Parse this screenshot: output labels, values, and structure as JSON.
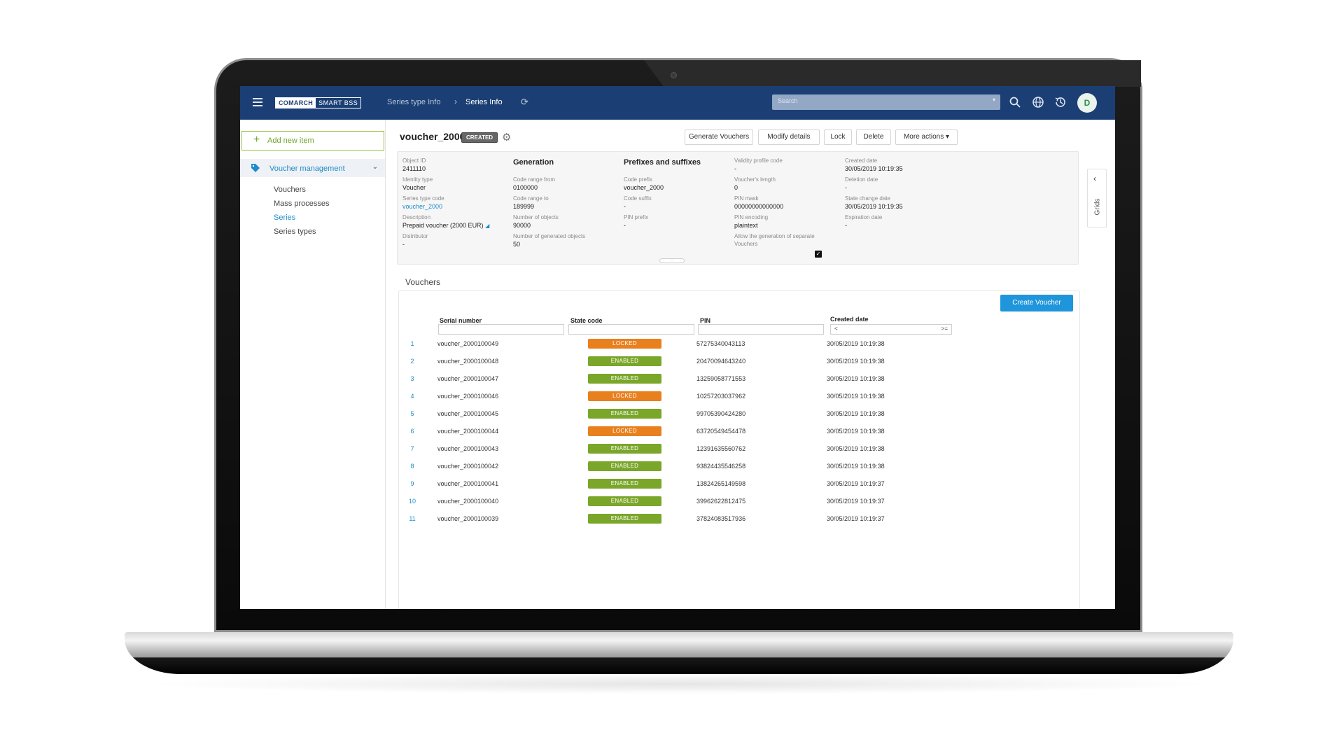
{
  "app": {
    "logo_primary": "COMARCH",
    "logo_secondary": "SMART BSS",
    "breadcrumb": [
      "Series type Info",
      "Series Info"
    ],
    "search_placeholder": "Search",
    "avatar_initial": "D",
    "accent_color": "#1b3f74"
  },
  "sidebar": {
    "add_label": "Add new item",
    "section_label": "Voucher management",
    "items": [
      {
        "label": "Vouchers",
        "active": false
      },
      {
        "label": "Mass processes",
        "active": false
      },
      {
        "label": "Series",
        "active": true
      },
      {
        "label": "Series types",
        "active": false
      }
    ]
  },
  "header": {
    "title": "voucher_2000",
    "status": "CREATED",
    "buttons": [
      "Generate Vouchers",
      "Modify details",
      "Lock",
      "Delete",
      "More actions"
    ]
  },
  "details": {
    "col1": [
      {
        "label": "Object ID",
        "value": "2411110"
      },
      {
        "label": "Identity type",
        "value": "Voucher"
      },
      {
        "label": "Series type code",
        "value": "voucher_2000"
      },
      {
        "label": "Description",
        "value": "Prepaid voucher (2000 EUR)"
      },
      {
        "label": "Distributor",
        "value": "-"
      }
    ],
    "generation": {
      "title": "Generation",
      "fields": [
        {
          "label": "Code range from",
          "value": "0100000"
        },
        {
          "label": "Code range to",
          "value": "189999"
        },
        {
          "label": "Number of objects",
          "value": "90000"
        },
        {
          "label": "Number of generated objects",
          "value": "50"
        }
      ]
    },
    "prefixes": {
      "title": "Prefixes and suffixes",
      "fields": [
        {
          "label": "Code prefix",
          "value": "voucher_2000"
        },
        {
          "label": "Code suffix",
          "value": "-"
        },
        {
          "label": "PIN prefix",
          "value": "-"
        }
      ]
    },
    "col4": [
      {
        "label": "Validity profile code",
        "value": "-"
      },
      {
        "label": "Voucher's length",
        "value": "0"
      },
      {
        "label": "PIN mask",
        "value": "00000000000000"
      },
      {
        "label": "PIN encoding",
        "value": "plaintext"
      }
    ],
    "allow_label_1": "Allow the generation of separate",
    "allow_label_2": "Vouchers",
    "allow_checked": true,
    "col5": [
      {
        "label": "Created date",
        "value": "30/05/2019 10:19:35"
      },
      {
        "label": "Deletion date",
        "value": "-"
      },
      {
        "label": "State change date",
        "value": "30/05/2019 10:19:35"
      },
      {
        "label": "Expiration date",
        "value": "-"
      }
    ]
  },
  "grids_tab_label": "Grids",
  "vouchers": {
    "title": "Vouchers",
    "create_label": "Create Voucher",
    "columns": [
      "Serial number",
      "State code",
      "PIN",
      "Created date"
    ],
    "date_filter_lt": "<",
    "date_filter_ge": ">=",
    "state_colors": {
      "LOCKED": "#e8801e",
      "ENABLED": "#7aa62a"
    },
    "rows": [
      {
        "n": "1",
        "serial": "voucher_2000100049",
        "state": "LOCKED",
        "pin": "57275340043113",
        "date": "30/05/2019 10:19:38"
      },
      {
        "n": "2",
        "serial": "voucher_2000100048",
        "state": "ENABLED",
        "pin": "20470094643240",
        "date": "30/05/2019 10:19:38"
      },
      {
        "n": "3",
        "serial": "voucher_2000100047",
        "state": "ENABLED",
        "pin": "13259058771553",
        "date": "30/05/2019 10:19:38"
      },
      {
        "n": "4",
        "serial": "voucher_2000100046",
        "state": "LOCKED",
        "pin": "10257203037962",
        "date": "30/05/2019 10:19:38"
      },
      {
        "n": "5",
        "serial": "voucher_2000100045",
        "state": "ENABLED",
        "pin": "99705390424280",
        "date": "30/05/2019 10:19:38"
      },
      {
        "n": "6",
        "serial": "voucher_2000100044",
        "state": "LOCKED",
        "pin": "63720549454478",
        "date": "30/05/2019 10:19:38"
      },
      {
        "n": "7",
        "serial": "voucher_2000100043",
        "state": "ENABLED",
        "pin": "12391635560762",
        "date": "30/05/2019 10:19:38"
      },
      {
        "n": "8",
        "serial": "voucher_2000100042",
        "state": "ENABLED",
        "pin": "93824435546258",
        "date": "30/05/2019 10:19:38"
      },
      {
        "n": "9",
        "serial": "voucher_2000100041",
        "state": "ENABLED",
        "pin": "13824265149598",
        "date": "30/05/2019 10:19:37"
      },
      {
        "n": "10",
        "serial": "voucher_2000100040",
        "state": "ENABLED",
        "pin": "39962622812475",
        "date": "30/05/2019 10:19:37"
      },
      {
        "n": "11",
        "serial": "voucher_2000100039",
        "state": "ENABLED",
        "pin": "37824083517936",
        "date": "30/05/2019 10:19:37"
      }
    ]
  }
}
